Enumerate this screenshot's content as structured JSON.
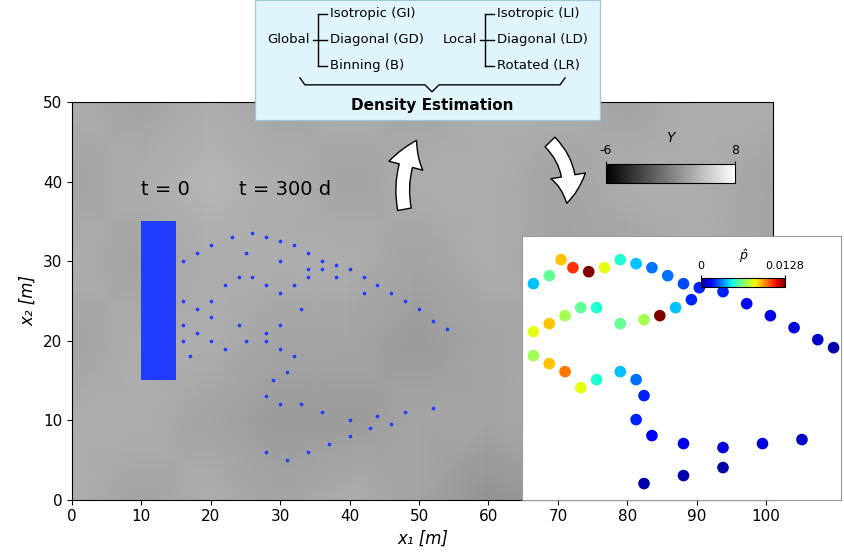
{
  "chart_data": [
    {
      "type": "scatter",
      "x_label": "x₁ [m]",
      "y_label": "x₂ [m]",
      "xlim": [
        0,
        101
      ],
      "ylim": [
        0,
        50
      ],
      "xticks": [
        0,
        10,
        20,
        30,
        40,
        50,
        60,
        70,
        80,
        90,
        100
      ],
      "yticks": [
        0,
        10,
        20,
        30,
        40,
        50
      ],
      "annotations": [
        {
          "text": "t = 0",
          "x": 10,
          "y": 39
        },
        {
          "text": "t = 300 d",
          "x": 24,
          "y": 39
        }
      ],
      "source": {
        "x": [
          10,
          15
        ],
        "y": [
          15,
          35
        ],
        "color": "#1f3cff"
      },
      "series": [
        {
          "color": "#1f3cff",
          "marker": "point",
          "x": [
            16,
            18,
            20,
            23,
            26,
            28,
            30,
            32,
            34,
            36,
            38,
            40,
            42,
            44,
            46,
            48,
            50,
            52,
            54,
            25,
            30,
            34,
            38,
            42,
            16,
            18,
            20,
            22,
            24,
            26,
            28,
            30,
            32,
            34,
            36,
            20,
            24,
            28,
            30,
            33,
            16,
            18,
            20,
            22,
            25,
            28,
            30,
            32,
            31,
            29,
            28,
            30,
            33,
            36,
            40,
            44,
            48,
            52,
            28,
            31,
            34,
            37,
            40,
            43,
            46,
            16,
            17
          ],
          "y": [
            30,
            31,
            32,
            33,
            33.5,
            33,
            32.5,
            32,
            31,
            30,
            29.5,
            29,
            28,
            27,
            26,
            25,
            24,
            22.5,
            21.5,
            31,
            30,
            29,
            28,
            26,
            25,
            24,
            25,
            27,
            28,
            28,
            27,
            26,
            27,
            28,
            29,
            23,
            22,
            21,
            22,
            24,
            22,
            21,
            20,
            19,
            20,
            20,
            19,
            18,
            16,
            15,
            13,
            12,
            12,
            11,
            10,
            10.5,
            11,
            11.5,
            6,
            5,
            6,
            7,
            8,
            9,
            9.5,
            20,
            18
          ]
        }
      ],
      "field": {
        "x": [
          0,
          10,
          20,
          30,
          40,
          50,
          60,
          70,
          80,
          90,
          101
        ],
        "y": [
          0,
          10,
          20,
          30,
          40,
          50
        ],
        "values": [
          [
            3.5,
            3,
            3.5,
            3,
            3.5,
            3,
            2,
            2.5,
            3.5,
            3,
            3.5
          ],
          [
            3.5,
            3.5,
            3,
            2.5,
            2.5,
            3,
            3,
            3.5,
            3.5,
            3,
            3
          ],
          [
            3,
            3.5,
            3.5,
            3,
            3,
            2.5,
            3,
            3.5,
            3,
            3.5,
            3.5
          ],
          [
            3.5,
            3,
            3.5,
            3.5,
            3.5,
            3,
            3.5,
            3,
            3,
            3.5,
            3
          ],
          [
            3,
            3.5,
            4,
            3.5,
            3,
            3.5,
            3.5,
            3,
            3.5,
            3.5,
            3
          ],
          [
            3.5,
            3,
            3.5,
            3,
            3.5,
            3,
            3.5,
            3.5,
            3,
            3.5,
            3.5
          ]
        ],
        "colorbar": {
          "label": "Y",
          "range": [
            -6,
            8
          ],
          "ticks": [
            -6,
            8
          ]
        }
      }
    },
    {
      "type": "density",
      "xlim": [
        14.5,
        55
      ],
      "ylim": [
        3,
        36
      ],
      "tick_labels": false,
      "points": {
        "x": [
          16,
          18,
          19.5,
          21,
          23,
          25,
          27,
          29,
          31,
          33,
          35,
          37,
          40,
          43,
          46,
          49,
          52,
          54,
          16,
          18,
          20,
          22,
          24,
          27,
          30,
          32,
          34,
          36,
          16,
          18,
          20,
          22,
          24,
          27,
          29,
          30,
          29,
          31,
          35,
          40,
          45,
          50,
          30,
          35,
          40
        ],
        "y": [
          30,
          31,
          33,
          32,
          31.5,
          32,
          33,
          32.5,
          32,
          31,
          30,
          29.5,
          29,
          27.5,
          26,
          24.5,
          23,
          22,
          24,
          25,
          26,
          27,
          27,
          25,
          25.5,
          26,
          27,
          28,
          21,
          20,
          19,
          17,
          18,
          19,
          18,
          16,
          13,
          11,
          10,
          9.5,
          10,
          10.5,
          5,
          6,
          7
        ],
        "values": [
          0.004,
          0.006,
          0.009,
          0.011,
          0.0128,
          0.008,
          0.005,
          0.004,
          0.003,
          0.003,
          0.0025,
          0.002,
          0.002,
          0.0015,
          0.0012,
          0.001,
          0.0008,
          0.0005,
          0.008,
          0.009,
          0.007,
          0.006,
          0.005,
          0.006,
          0.007,
          0.0128,
          0.004,
          0.002,
          0.007,
          0.009,
          0.01,
          0.008,
          0.005,
          0.004,
          0.003,
          0.002,
          0.002,
          0.0015,
          0.0012,
          0.001,
          0.001,
          0.0008,
          0.0005,
          0.0005,
          0.0004
        ]
      },
      "colorbar": {
        "label": "p̂",
        "range": [
          0,
          0.0128
        ],
        "ticks": [
          0,
          0.0128
        ]
      }
    }
  ],
  "diagram": {
    "title": "Density Estimation",
    "groups": [
      {
        "label": "Global",
        "items": [
          "Isotropic (GI)",
          "Diagonal (GD)",
          "Binning (B)"
        ]
      },
      {
        "label": "Local",
        "items": [
          "Isotropic (LI)",
          "Diagonal (LD)",
          "Rotated (LR)"
        ]
      }
    ]
  }
}
